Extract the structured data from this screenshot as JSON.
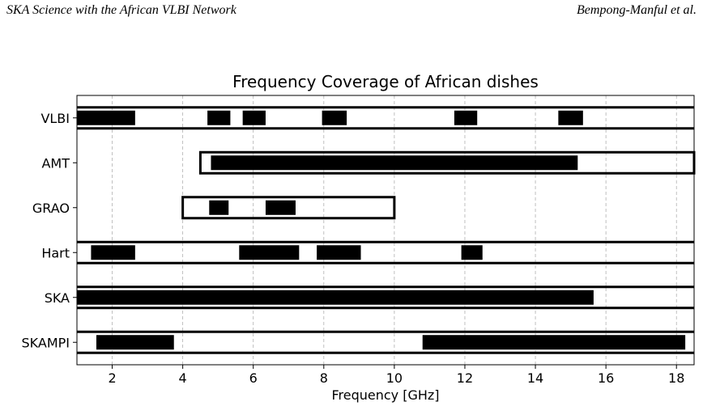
{
  "header": {
    "left": "SKA Science with the African VLBI Network",
    "right": "Bempong-Manful et al."
  },
  "chart_data": {
    "type": "bar",
    "orientation": "horizontal",
    "title": "Frequency Coverage of African dishes",
    "xlabel": "Frequency [GHz]",
    "ylabel": "",
    "xlim": [
      1.0,
      18.5
    ],
    "xticks": [
      2,
      4,
      6,
      8,
      10,
      12,
      14,
      16,
      18
    ],
    "grid": "vertical dashed",
    "categories": [
      "VLBI",
      "AMT",
      "GRAO",
      "Hart",
      "SKA",
      "SKAMPI"
    ],
    "series": [
      {
        "category": "VLBI",
        "range_box": [
          1.0,
          18.5
        ],
        "box_edges": "top-bottom",
        "bands": [
          [
            1.0,
            2.65
          ],
          [
            4.7,
            5.35
          ],
          [
            5.7,
            6.35
          ],
          [
            7.95,
            8.65
          ],
          [
            11.7,
            12.35
          ],
          [
            14.65,
            15.35
          ]
        ]
      },
      {
        "category": "AMT",
        "range_box": [
          4.5,
          18.5
        ],
        "box_edges": "full",
        "bands": [
          [
            4.8,
            15.2
          ]
        ]
      },
      {
        "category": "GRAO",
        "range_box": [
          4.0,
          10.0
        ],
        "box_edges": "full",
        "bands": [
          [
            4.75,
            5.3
          ],
          [
            6.35,
            7.2
          ]
        ]
      },
      {
        "category": "Hart",
        "range_box": [
          1.0,
          18.5
        ],
        "box_edges": "top-bottom",
        "bands": [
          [
            1.4,
            2.65
          ],
          [
            5.6,
            7.3
          ],
          [
            7.8,
            9.05
          ],
          [
            11.9,
            12.5
          ]
        ]
      },
      {
        "category": "SKA",
        "range_box": [
          1.0,
          18.5
        ],
        "box_edges": "top-bottom",
        "bands": [
          [
            1.0,
            15.65
          ]
        ]
      },
      {
        "category": "SKAMPI",
        "range_box": [
          1.0,
          18.5
        ],
        "box_edges": "top-bottom",
        "bands": [
          [
            1.55,
            3.75
          ],
          [
            10.8,
            18.25
          ]
        ]
      }
    ],
    "colors": {
      "band": "#000000",
      "box": "#000000",
      "grid": "#b0b0b0"
    }
  }
}
